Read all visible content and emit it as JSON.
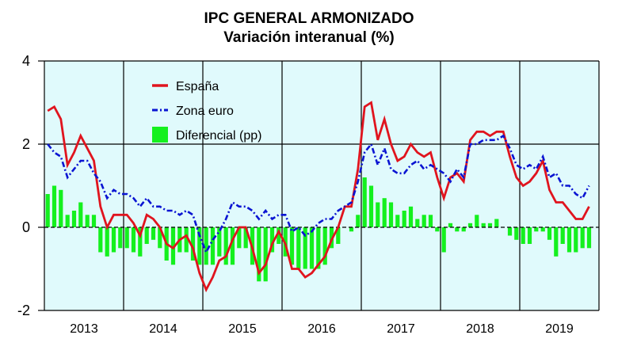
{
  "chart_data": {
    "type": "line",
    "title": "IPC GENERAL ARMONIZADO",
    "subtitle": "Variación interanual (%)",
    "xlabel": "",
    "ylabel": "",
    "ylim": [
      -2,
      4
    ],
    "yticks": [
      -2,
      0,
      2,
      4
    ],
    "grid": true,
    "x_period": "monthly, Jan 2013 - Nov 2019",
    "categories": [
      "2013",
      "2014",
      "2015",
      "2016",
      "2017",
      "2018",
      "2019"
    ],
    "legend_position": "top-left",
    "series": [
      {
        "name": "España",
        "type": "line",
        "style": "solid",
        "color": "#e0141e",
        "values": [
          2.8,
          2.9,
          2.6,
          1.5,
          1.8,
          2.2,
          1.9,
          1.6,
          0.5,
          0.0,
          0.3,
          0.3,
          0.3,
          0.1,
          -0.2,
          0.3,
          0.2,
          0.0,
          -0.4,
          -0.5,
          -0.3,
          -0.2,
          -0.5,
          -1.1,
          -1.5,
          -1.2,
          -0.8,
          -0.7,
          -0.3,
          0.0,
          0.0,
          -0.5,
          -1.1,
          -0.9,
          -0.4,
          -0.1,
          -0.4,
          -1.0,
          -1.0,
          -1.2,
          -1.1,
          -0.9,
          -0.7,
          -0.3,
          0.0,
          0.5,
          0.5,
          1.4,
          2.9,
          3.0,
          2.1,
          2.6,
          2.0,
          1.6,
          1.7,
          2.0,
          1.8,
          1.7,
          1.8,
          1.2,
          0.7,
          1.2,
          1.3,
          1.1,
          2.1,
          2.3,
          2.3,
          2.2,
          2.3,
          2.3,
          1.7,
          1.2,
          1.0,
          1.1,
          1.3,
          1.6,
          0.9,
          0.6,
          0.6,
          0.4,
          0.2,
          0.2,
          0.5
        ]
      },
      {
        "name": "Zona euro",
        "type": "line",
        "style": "dash-dot",
        "color": "#0a14d2",
        "values": [
          2.0,
          1.8,
          1.7,
          1.2,
          1.4,
          1.6,
          1.6,
          1.3,
          1.1,
          0.7,
          0.9,
          0.8,
          0.8,
          0.7,
          0.5,
          0.7,
          0.5,
          0.5,
          0.4,
          0.4,
          0.3,
          0.4,
          0.3,
          -0.2,
          -0.6,
          -0.3,
          -0.1,
          0.2,
          0.6,
          0.5,
          0.5,
          0.4,
          0.2,
          0.4,
          0.2,
          0.3,
          0.3,
          -0.1,
          0.0,
          -0.2,
          -0.1,
          0.1,
          0.2,
          0.2,
          0.4,
          0.5,
          0.6,
          1.1,
          1.8,
          2.0,
          1.5,
          1.9,
          1.4,
          1.3,
          1.3,
          1.5,
          1.6,
          1.4,
          1.5,
          1.4,
          1.3,
          1.1,
          1.4,
          1.2,
          2.0,
          2.0,
          2.1,
          2.1,
          2.1,
          2.2,
          1.9,
          1.5,
          1.4,
          1.5,
          1.4,
          1.7,
          1.2,
          1.3,
          1.0,
          1.0,
          0.8,
          0.7,
          1.0
        ]
      },
      {
        "name": "Diferencial (pp)",
        "type": "bar",
        "color": "#14f01e",
        "values": [
          0.8,
          1.0,
          0.9,
          0.3,
          0.4,
          0.6,
          0.3,
          0.3,
          -0.6,
          -0.7,
          -0.6,
          -0.5,
          -0.5,
          -0.6,
          -0.7,
          -0.4,
          -0.3,
          -0.5,
          -0.8,
          -0.9,
          -0.6,
          -0.6,
          -0.8,
          -0.9,
          -0.9,
          -0.9,
          -0.7,
          -0.9,
          -0.9,
          -0.5,
          -0.5,
          -0.9,
          -1.3,
          -1.3,
          -0.6,
          -0.4,
          -0.7,
          -0.9,
          -1.0,
          -1.0,
          -1.0,
          -1.0,
          -0.9,
          -0.5,
          -0.4,
          0.0,
          -0.1,
          0.3,
          1.2,
          1.0,
          0.6,
          0.7,
          0.6,
          0.3,
          0.4,
          0.5,
          0.2,
          0.3,
          0.3,
          -0.1,
          -0.6,
          0.1,
          -0.1,
          -0.1,
          0.1,
          0.3,
          0.1,
          0.1,
          0.2,
          0.0,
          -0.2,
          -0.3,
          -0.4,
          -0.4,
          -0.1,
          -0.1,
          -0.3,
          -0.7,
          -0.4,
          -0.6,
          -0.6,
          -0.5,
          -0.5
        ]
      }
    ]
  },
  "colors": {
    "plot_background": "#e0fafc",
    "grid": "#000000"
  }
}
